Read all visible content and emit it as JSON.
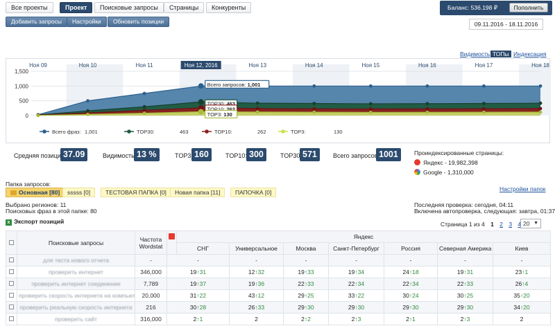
{
  "nav": {
    "tabs": [
      {
        "label": "Все проекты",
        "active": false
      },
      {
        "label": "Проект",
        "active": true
      },
      {
        "label": "Поисковые запросы",
        "active": false
      },
      {
        "label": "Страницы",
        "active": false
      },
      {
        "label": "Конкуренты",
        "active": false
      }
    ],
    "balance_label": "Баланс: 536.198 ₽",
    "topup_label": "Пополнить"
  },
  "toolbar": {
    "add_label": "Добавить запросы",
    "settings_label": "Настройки",
    "update_label": "Обновить позиции"
  },
  "date_range": "09.11.2016 - 18.11.2016",
  "chart_tabs": {
    "visibility": "Видимость",
    "tops": "ТОПы",
    "indexing": "Индексация"
  },
  "chart_data": {
    "type": "area",
    "x": [
      "Ноя 09",
      "Ноя 10",
      "Ноя 11",
      "Ноя 12, 2016",
      "Ноя 13",
      "Ноя 14",
      "Ноя 15",
      "Ноя 16",
      "Ноя 17",
      "Ноя 18"
    ],
    "highlight_index": 3,
    "ylim": [
      0,
      1500
    ],
    "yticks": [
      "0",
      "500",
      "1,000",
      "1,500"
    ],
    "series": [
      {
        "name": "Всего фраз",
        "values": [
          30,
          500,
          750,
          1001,
          1001,
          1001,
          1001,
          1001,
          1001,
          1001
        ],
        "color": "#4d7fa8",
        "line": "#2b5f8e"
      },
      {
        "name": "TOP30",
        "values": [
          25,
          160,
          300,
          463,
          420,
          410,
          400,
          405,
          410,
          420
        ],
        "color": "#1f5a3f",
        "line": "#173f2d"
      },
      {
        "name": "TOP10",
        "values": [
          15,
          90,
          180,
          262,
          240,
          230,
          225,
          228,
          232,
          240
        ],
        "color": "#8b1f1f",
        "line": "#6d1515"
      },
      {
        "name": "TOP3",
        "values": [
          5,
          40,
          80,
          130,
          120,
          115,
          110,
          112,
          115,
          118
        ],
        "color": "#c8d86a",
        "line": "#a9bb3c"
      }
    ],
    "tooltips": [
      {
        "label": "Всего запросов:",
        "value": "1,001"
      },
      {
        "label": "TOP30:",
        "value": "463"
      },
      {
        "label": "TOP10:",
        "value": "262"
      },
      {
        "label": "TOP3:",
        "value": "130"
      }
    ],
    "legend": [
      {
        "name": "Всего фраз:",
        "value": "1,001",
        "color": "#2b5f8e"
      },
      {
        "name": "TOP30:",
        "value": "463",
        "color": "#1f5a3f"
      },
      {
        "name": "TOP10:",
        "value": "262",
        "color": "#8b1f1f"
      },
      {
        "name": "TOP3:",
        "value": "130",
        "color": "#c8e34a"
      }
    ]
  },
  "stats": {
    "avg_pos_label": "Средняя позиция:",
    "avg_pos": "37.09",
    "visibility_label": "Видимость:",
    "visibility": "13 %",
    "top3_label": "TOP3:",
    "top3": "160",
    "top10_label": "TOP10:",
    "top10": "300",
    "top30_label": "TOP30:",
    "top30": "571",
    "total_label": "Всего запросов:",
    "total": "1001"
  },
  "indexed": {
    "title": "Проиндексированные страницы:",
    "yandex": "Яндекс - 19,982,398",
    "google": "Google - 1,310,000"
  },
  "folders": {
    "label": "Папка запросов:",
    "items": [
      "Основная [80]",
      "sssss [0]",
      "ТЕСТОВАЯ ПАПКА [0]",
      "Новая папка [11]",
      "ПАПОЧКА [0]"
    ],
    "settings_link": "Настройки папок"
  },
  "info": {
    "regions": "Выбрано регионов: 11",
    "phrases": "Поисковых фраз в этой папке: 80",
    "last_check": "Последняя проверка: сегодня, 04:11",
    "autocheck": "Включена автопроверка, следующая: завтра, 01:37",
    "export": "Экспорт позиций"
  },
  "pager": {
    "text": "Страница 1 из 4",
    "pages": [
      "1",
      "2",
      "3",
      "4"
    ],
    "per_page": "20"
  },
  "table": {
    "col_query": "Поисковые запросы",
    "col_freq": "Частота Wordstat",
    "engine": "Яндекс",
    "regions": [
      "СНГ",
      "Универсальное",
      "Москва",
      "Санкт-Петербург",
      "Россия",
      "Северная Америка",
      "Киев"
    ],
    "rows": [
      {
        "q": "для теста нового отчета",
        "f": "-",
        "c": [
          [
            "-",
            ""
          ],
          [
            "-",
            ""
          ],
          [
            "-",
            ""
          ],
          [
            "-",
            ""
          ],
          [
            "-",
            ""
          ],
          [
            "-",
            ""
          ],
          [
            "-",
            ""
          ]
        ]
      },
      {
        "q": "проверить интернет",
        "f": "346,000",
        "c": [
          [
            "19",
            "↑31"
          ],
          [
            "12",
            "↑32"
          ],
          [
            "19",
            "↑33"
          ],
          [
            "19",
            "↑34"
          ],
          [
            "24",
            "↑18"
          ],
          [
            "19",
            "↑31"
          ],
          [
            "23",
            "↑1"
          ]
        ]
      },
      {
        "q": "проверить интернет соединение",
        "f": "7,789",
        "c": [
          [
            "19",
            "↑37"
          ],
          [
            "19",
            "↑36"
          ],
          [
            "22",
            "↑33"
          ],
          [
            "22",
            "↑34"
          ],
          [
            "22",
            "↑34"
          ],
          [
            "22",
            "↑33"
          ],
          [
            "26",
            "↑4"
          ]
        ]
      },
      {
        "q": "проверить скорость интернета на компьютере",
        "f": "20,000",
        "c": [
          [
            "31",
            "↑22"
          ],
          [
            "43",
            "↑12"
          ],
          [
            "29",
            "↑25"
          ],
          [
            "33",
            "↑22"
          ],
          [
            "30",
            "↑24"
          ],
          [
            "30",
            "↑25"
          ],
          [
            "35",
            "↑20"
          ]
        ]
      },
      {
        "q": "проверить реальную скорость интернета",
        "f": "216",
        "c": [
          [
            "30",
            "↑28"
          ],
          [
            "26",
            "↑33"
          ],
          [
            "29",
            "↑30"
          ],
          [
            "29",
            "↑30"
          ],
          [
            "29",
            "↑30"
          ],
          [
            "29",
            "↑30"
          ],
          [
            "34",
            "↑20"
          ]
        ]
      },
      {
        "q": "проверить сайт",
        "f": "316,000",
        "c": [
          [
            "2",
            "↑1"
          ],
          [
            "2",
            ""
          ],
          [
            "2",
            "↑2"
          ],
          [
            "2",
            "↑3"
          ],
          [
            "2",
            "↑1"
          ],
          [
            "2",
            "↑3"
          ],
          [
            "2",
            ""
          ]
        ]
      }
    ]
  }
}
